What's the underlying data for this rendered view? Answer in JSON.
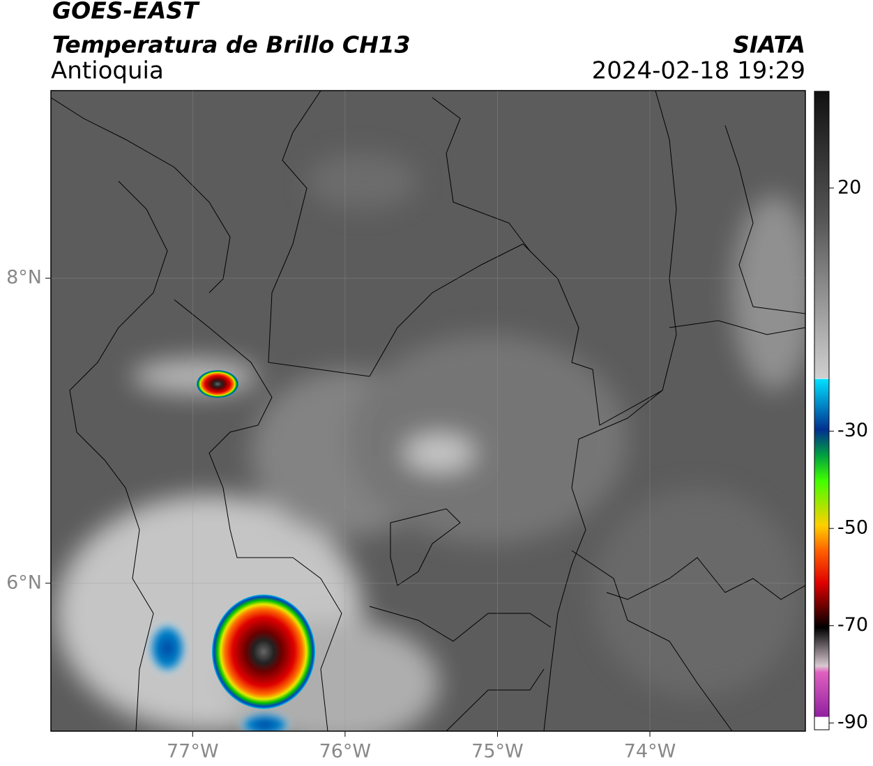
{
  "header": {
    "title": "GOES-EAST",
    "subtitle": "Temperatura de Brillo CH13",
    "region": "Antioquia",
    "source": "SIATA",
    "datetime": "2024-02-18 19:29"
  },
  "map": {
    "xlim": [
      -77.93,
      -72.98
    ],
    "ylim": [
      5.03,
      9.23
    ],
    "xticks": [
      {
        "value": -77,
        "label": "77°W"
      },
      {
        "value": -76,
        "label": "76°W"
      },
      {
        "value": -75,
        "label": "75°W"
      },
      {
        "value": -74,
        "label": "74°W"
      }
    ],
    "yticks": [
      {
        "value": 8,
        "label": "8°N"
      },
      {
        "value": 6,
        "label": "6°N"
      }
    ],
    "grid": true
  },
  "colorbar": {
    "lim": [
      -91.4,
      39.9
    ],
    "ticks": [
      20,
      -30,
      -50,
      -70,
      -90
    ]
  }
}
